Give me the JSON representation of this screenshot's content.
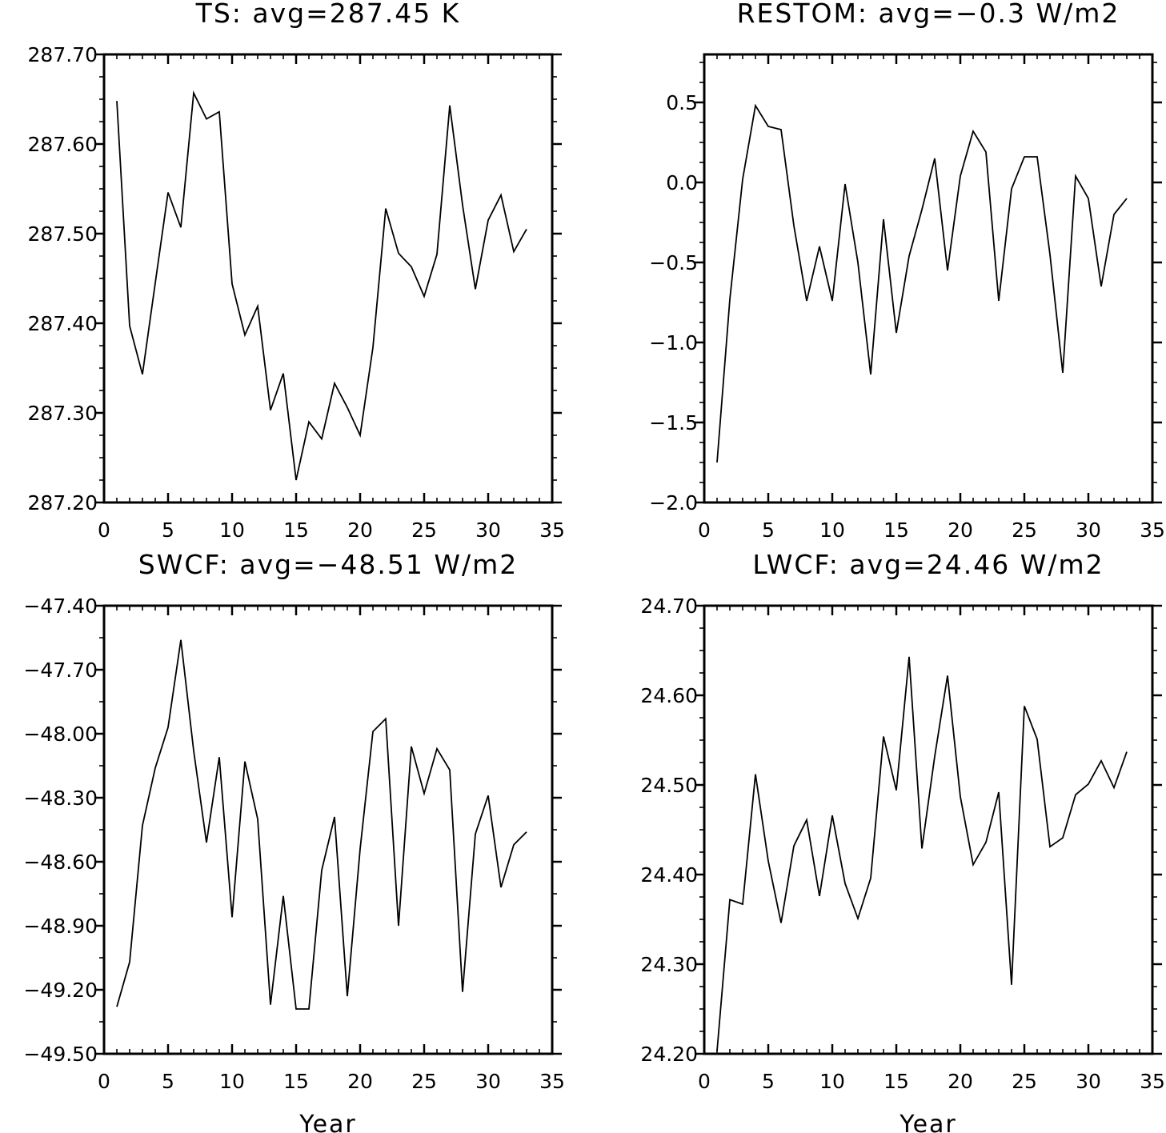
{
  "chart_data": [
    {
      "type": "line",
      "title": "TS: avg=287.45 K",
      "xlabel": "",
      "ylabel": "",
      "xlim": [
        0,
        35
      ],
      "ylim": [
        287.2,
        287.7
      ],
      "xticks": [
        "0",
        "5",
        "10",
        "15",
        "20",
        "25",
        "30",
        "35"
      ],
      "yticks": [
        "287.20",
        "287.30",
        "287.40",
        "287.50",
        "287.60",
        "287.70"
      ],
      "grid": false,
      "x": [
        1,
        2,
        3,
        4,
        5,
        6,
        7,
        8,
        9,
        10,
        11,
        12,
        13,
        14,
        15,
        16,
        17,
        18,
        19,
        20,
        21,
        22,
        23,
        24,
        25,
        26,
        27,
        28,
        29,
        30,
        31,
        32,
        33
      ],
      "values": [
        287.648,
        287.397,
        287.343,
        287.445,
        287.546,
        287.507,
        287.657,
        287.628,
        287.636,
        287.444,
        287.387,
        287.419,
        287.303,
        287.344,
        287.225,
        287.29,
        287.271,
        287.333,
        287.306,
        287.275,
        287.373,
        287.528,
        287.478,
        287.463,
        287.43,
        287.477,
        287.643,
        287.532,
        287.438,
        287.515,
        287.543,
        287.48,
        287.505
      ]
    },
    {
      "type": "line",
      "title": "RESTOM: avg=−0.3 W/m2",
      "xlabel": "",
      "ylabel": "",
      "xlim": [
        0,
        35
      ],
      "ylim": [
        -2.0,
        0.8
      ],
      "xticks": [
        "0",
        "5",
        "10",
        "15",
        "20",
        "25",
        "30",
        "35"
      ],
      "yticks": [
        "−2.0",
        "−1.5",
        "−1.0",
        "−0.5",
        "0.0",
        "0.5"
      ],
      "grid": false,
      "x": [
        1,
        2,
        3,
        4,
        5,
        6,
        7,
        8,
        9,
        10,
        11,
        12,
        13,
        14,
        15,
        16,
        17,
        18,
        19,
        20,
        21,
        22,
        23,
        24,
        25,
        26,
        27,
        28,
        29,
        30,
        31,
        32,
        33
      ],
      "values": [
        -1.75,
        -0.73,
        0.02,
        0.48,
        0.35,
        0.33,
        -0.27,
        -0.74,
        -0.4,
        -0.74,
        -0.01,
        -0.5,
        -1.2,
        -0.23,
        -0.94,
        -0.46,
        -0.17,
        0.15,
        -0.55,
        0.04,
        0.32,
        0.19,
        -0.74,
        -0.04,
        0.16,
        0.16,
        -0.45,
        -1.19,
        0.04,
        -0.1,
        -0.65,
        -0.2,
        -0.1
      ]
    },
    {
      "type": "line",
      "title": "SWCF: avg=−48.51 W/m2",
      "xlabel": "Year",
      "ylabel": "",
      "xlim": [
        0,
        35
      ],
      "ylim": [
        -49.5,
        -47.4
      ],
      "xticks": [
        "0",
        "5",
        "10",
        "15",
        "20",
        "25",
        "30",
        "35"
      ],
      "yticks": [
        "−49.50",
        "−49.20",
        "−48.90",
        "−48.60",
        "−48.30",
        "−48.00",
        "−47.70",
        "−47.40"
      ],
      "grid": false,
      "x": [
        1,
        2,
        3,
        4,
        5,
        6,
        7,
        8,
        9,
        10,
        11,
        12,
        13,
        14,
        15,
        16,
        17,
        18,
        19,
        20,
        21,
        22,
        23,
        24,
        25,
        26,
        27,
        28,
        29,
        30,
        31,
        32,
        33
      ],
      "values": [
        -49.28,
        -49.07,
        -48.43,
        -48.16,
        -47.97,
        -47.56,
        -48.08,
        -48.51,
        -48.11,
        -48.86,
        -48.13,
        -48.4,
        -49.27,
        -48.76,
        -49.29,
        -49.29,
        -48.64,
        -48.39,
        -49.23,
        -48.54,
        -47.99,
        -47.93,
        -48.9,
        -48.06,
        -48.28,
        -48.07,
        -48.17,
        -49.21,
        -48.47,
        -48.29,
        -48.72,
        -48.52,
        -48.46
      ]
    },
    {
      "type": "line",
      "title": "LWCF: avg=24.46 W/m2",
      "xlabel": "Year",
      "ylabel": "",
      "xlim": [
        0,
        35
      ],
      "ylim": [
        24.2,
        24.7
      ],
      "xticks": [
        "0",
        "5",
        "10",
        "15",
        "20",
        "25",
        "30",
        "35"
      ],
      "yticks": [
        "24.20",
        "24.30",
        "24.40",
        "24.50",
        "24.60",
        "24.70"
      ],
      "grid": false,
      "x": [
        1,
        2,
        3,
        4,
        5,
        6,
        7,
        8,
        9,
        10,
        11,
        12,
        13,
        14,
        15,
        16,
        17,
        18,
        19,
        20,
        21,
        22,
        23,
        24,
        25,
        26,
        27,
        28,
        29,
        30,
        31,
        32,
        33
      ],
      "values": [
        24.203,
        24.372,
        24.367,
        24.512,
        24.415,
        24.346,
        24.432,
        24.461,
        24.376,
        24.466,
        24.39,
        24.351,
        24.396,
        24.554,
        24.494,
        24.643,
        24.429,
        24.532,
        24.622,
        24.487,
        24.411,
        24.436,
        24.492,
        24.277,
        24.588,
        24.551,
        24.431,
        24.441,
        24.489,
        24.501,
        24.527,
        24.497,
        24.537
      ]
    }
  ]
}
